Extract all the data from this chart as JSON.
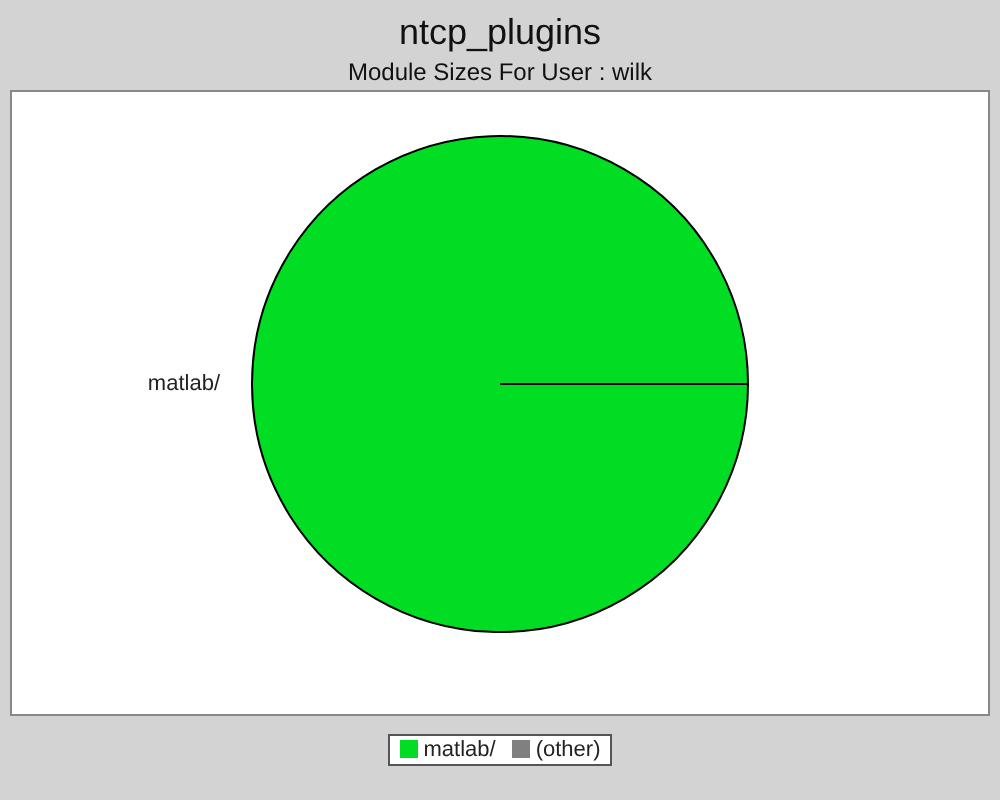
{
  "chart_data": {
    "type": "pie",
    "title": "ntcp_plugins",
    "subtitle": "Module Sizes For User : wilk",
    "categories": [
      "matlab/",
      "(other)"
    ],
    "values": [
      100,
      0
    ],
    "colors": [
      "#00dd22",
      "#808080"
    ],
    "legend": "bottom"
  }
}
